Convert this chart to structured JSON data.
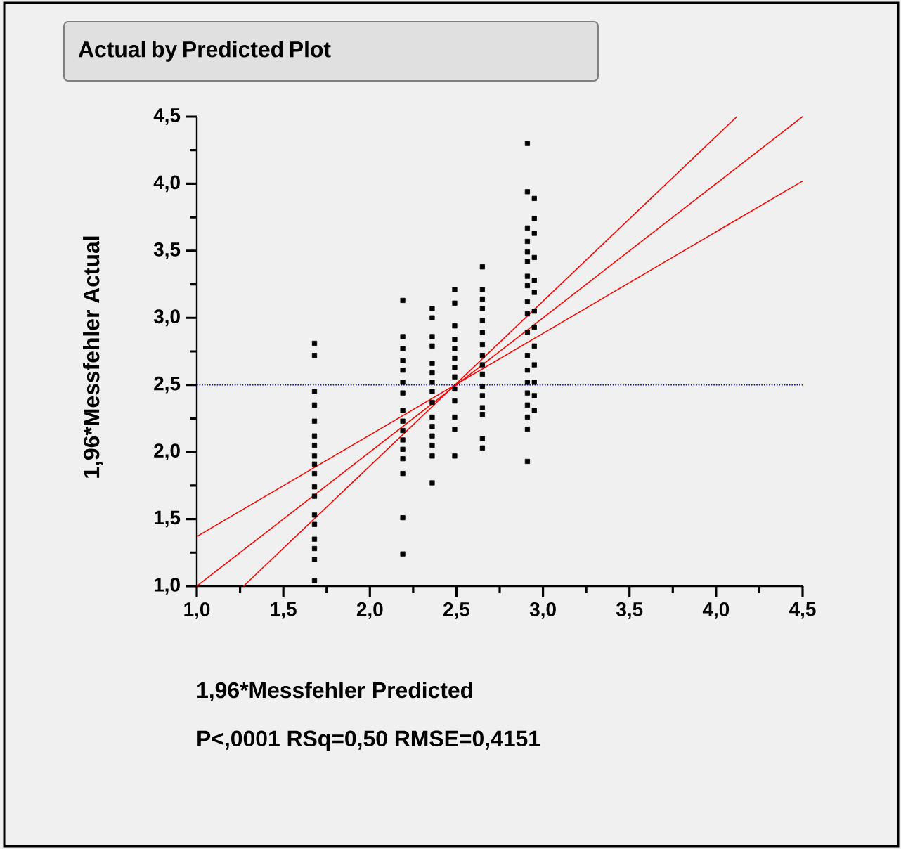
{
  "chart_data": {
    "type": "scatter",
    "title": "Actual by Predicted Plot",
    "xlabel": "1,96*Messfehler Predicted",
    "ylabel": "1,96*Messfehler Actual",
    "annotations": [
      "P<,0001 RSq=0,50 RMSE=0,4151"
    ],
    "xlim": [
      1.0,
      4.5
    ],
    "ylim": [
      1.0,
      4.5
    ],
    "xticks": [
      {
        "value": 1.0,
        "label": "1,0"
      },
      {
        "value": 1.5,
        "label": "1,5"
      },
      {
        "value": 2.0,
        "label": "2,0"
      },
      {
        "value": 2.5,
        "label": "2,5"
      },
      {
        "value": 3.0,
        "label": "3,0"
      },
      {
        "value": 3.5,
        "label": "3,5"
      },
      {
        "value": 4.0,
        "label": "4,0"
      },
      {
        "value": 4.5,
        "label": "4,5"
      }
    ],
    "yticks": [
      {
        "value": 1.0,
        "label": "1,0"
      },
      {
        "value": 1.5,
        "label": "1,5"
      },
      {
        "value": 2.0,
        "label": "2,0"
      },
      {
        "value": 2.5,
        "label": "2,5"
      },
      {
        "value": 3.0,
        "label": "3,0"
      },
      {
        "value": 3.5,
        "label": "3,5"
      },
      {
        "value": 4.0,
        "label": "4,0"
      },
      {
        "value": 4.5,
        "label": "4,5"
      }
    ],
    "ref_lines": [
      {
        "axis": "y",
        "value": 2.5,
        "color": "#0000ff",
        "line_style": "dotted"
      }
    ],
    "series": [
      {
        "type": "scatter",
        "color": "#000000",
        "marker": "square",
        "x": [
          1.68,
          1.68,
          1.68,
          1.68,
          1.68,
          1.68,
          1.68,
          1.68,
          1.68,
          1.68,
          1.68,
          1.68,
          1.68,
          1.68,
          1.68,
          1.68,
          1.68,
          1.68,
          2.19,
          2.19,
          2.19,
          2.19,
          2.19,
          2.19,
          2.19,
          2.19,
          2.19,
          2.19,
          2.19,
          2.19,
          2.19,
          2.19,
          2.19,
          2.19,
          2.36,
          2.36,
          2.36,
          2.36,
          2.36,
          2.36,
          2.36,
          2.36,
          2.36,
          2.36,
          2.36,
          2.36,
          2.36,
          2.36,
          2.36,
          2.49,
          2.49,
          2.49,
          2.49,
          2.49,
          2.49,
          2.49,
          2.49,
          2.49,
          2.49,
          2.49,
          2.49,
          2.49,
          2.65,
          2.65,
          2.65,
          2.65,
          2.65,
          2.65,
          2.65,
          2.65,
          2.65,
          2.65,
          2.65,
          2.65,
          2.65,
          2.65,
          2.65,
          2.65,
          2.91,
          2.91,
          2.91,
          2.91,
          2.91,
          2.91,
          2.91,
          2.91,
          2.91,
          2.91,
          2.91,
          2.91,
          2.91,
          2.91,
          2.91,
          2.91,
          2.91,
          2.91,
          2.91,
          2.95,
          2.95,
          2.95,
          2.95,
          2.95,
          2.95,
          2.95,
          2.95,
          2.95,
          2.95,
          2.95,
          2.95,
          2.95
        ],
        "values": [
          2.81,
          2.72,
          2.45,
          2.35,
          2.23,
          2.12,
          2.05,
          1.97,
          1.91,
          1.84,
          1.74,
          1.67,
          1.53,
          1.46,
          1.35,
          1.28,
          1.2,
          1.04,
          3.13,
          2.86,
          2.77,
          2.68,
          2.61,
          2.52,
          2.44,
          2.31,
          2.23,
          2.16,
          2.09,
          2.02,
          1.95,
          1.84,
          1.51,
          1.24,
          3.07,
          3.0,
          2.86,
          2.79,
          2.66,
          2.59,
          2.52,
          2.45,
          2.37,
          2.26,
          2.19,
          2.12,
          2.05,
          1.97,
          1.77,
          3.21,
          3.11,
          2.94,
          2.84,
          2.77,
          2.7,
          2.63,
          2.56,
          2.47,
          2.38,
          2.26,
          2.17,
          1.97,
          3.38,
          3.21,
          3.14,
          3.07,
          2.98,
          2.89,
          2.8,
          2.72,
          2.65,
          2.58,
          2.49,
          2.42,
          2.33,
          2.28,
          2.1,
          2.03,
          4.3,
          3.94,
          3.67,
          3.57,
          3.49,
          3.42,
          3.31,
          3.24,
          3.12,
          3.03,
          2.89,
          2.72,
          2.61,
          2.52,
          2.44,
          2.35,
          2.26,
          2.17,
          1.93,
          3.89,
          3.74,
          3.63,
          3.45,
          3.28,
          3.19,
          3.05,
          2.93,
          2.79,
          2.65,
          2.52,
          2.42,
          2.31
        ]
      },
      {
        "type": "line",
        "color": "#ff0000",
        "x": [
          1.0,
          4.5
        ],
        "values": [
          1.0,
          4.5
        ]
      },
      {
        "type": "line",
        "color": "#ff0000",
        "x": [
          1.27,
          4.12
        ],
        "values": [
          1.0,
          4.5
        ]
      },
      {
        "type": "line",
        "color": "#ff0000",
        "x": [
          1.0,
          4.5
        ],
        "values": [
          1.37,
          4.02
        ]
      }
    ]
  }
}
